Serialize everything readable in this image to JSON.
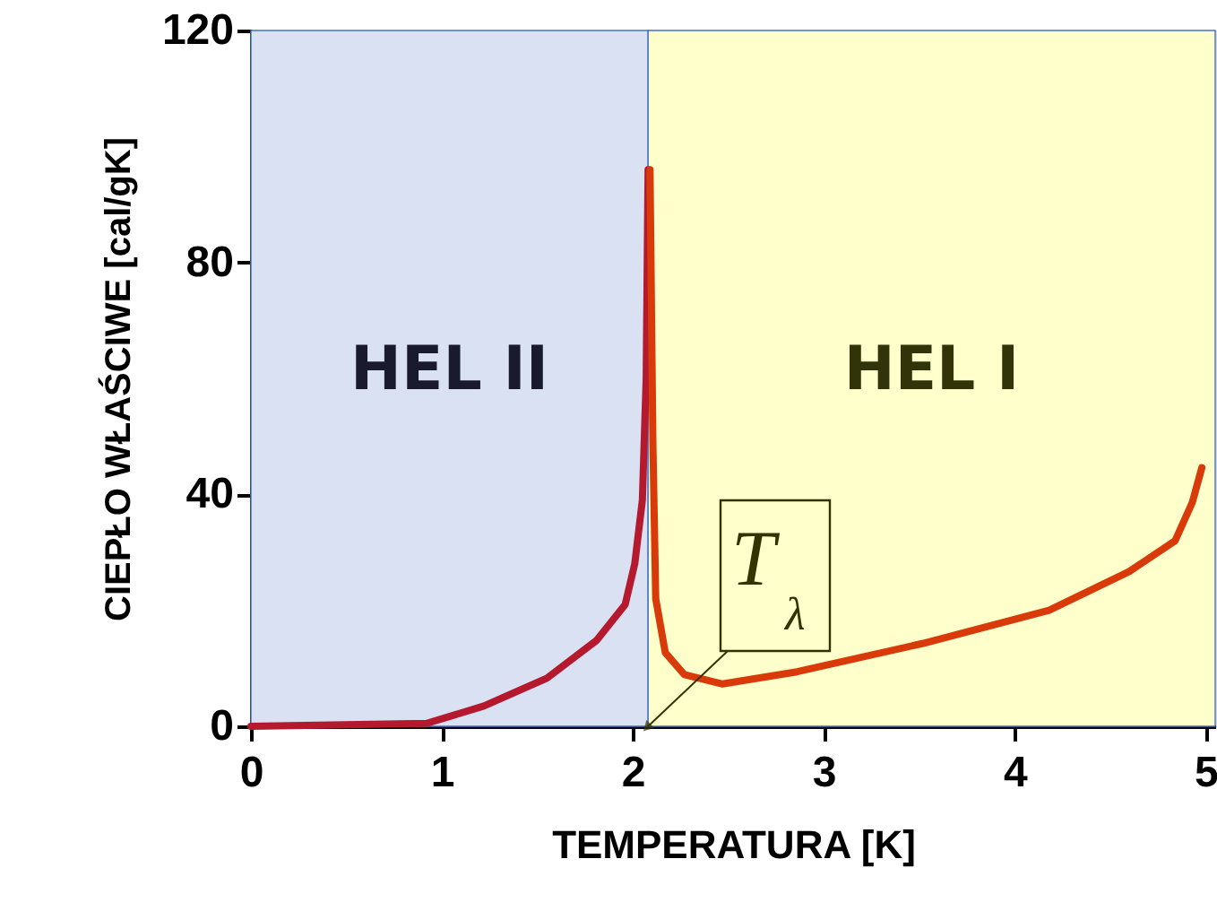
{
  "chart_data": {
    "type": "line",
    "xlabel": "TEMPERATURA [K]",
    "ylabel": "CIEPŁO WŁAŚCIWE [cal/gK]",
    "xlim": [
      0,
      5.05
    ],
    "ylim": [
      0,
      120
    ],
    "xticks": [
      0,
      1,
      2,
      3,
      4,
      5
    ],
    "yticks": [
      0,
      40,
      80,
      120
    ],
    "marker": "none",
    "line_style": "solid",
    "series": [
      {
        "color": "#b5192e",
        "x": [
          0,
          0.92,
          1.22,
          1.55,
          1.81,
          1.96,
          2.01,
          2.05,
          2.07,
          2.08
        ],
        "values": [
          0,
          0.5,
          3.5,
          8.3,
          14.8,
          21,
          28,
          39,
          60,
          96
        ]
      },
      {
        "color": "#d93a0a",
        "x": [
          2.09,
          2.105,
          2.12,
          2.17,
          2.27,
          2.47,
          2.86,
          3.52,
          4.18,
          4.6,
          4.84,
          4.93,
          4.98
        ],
        "values": [
          96,
          49,
          22,
          12.7,
          8.9,
          7.3,
          9.4,
          14.3,
          20,
          26.7,
          32,
          38.6,
          44.6
        ]
      }
    ],
    "bands": [
      {
        "axis": "x",
        "from": 0,
        "to": 2.08,
        "label": "HEL II",
        "color": "#d9e1f2"
      },
      {
        "axis": "x",
        "from": 2.08,
        "to": 5.05,
        "label": "HEL I",
        "color": "#ffffcc"
      }
    ],
    "annotations": [
      {
        "text": "T$_{λ}$",
        "x": 2.08,
        "y": 0
      }
    ]
  }
}
